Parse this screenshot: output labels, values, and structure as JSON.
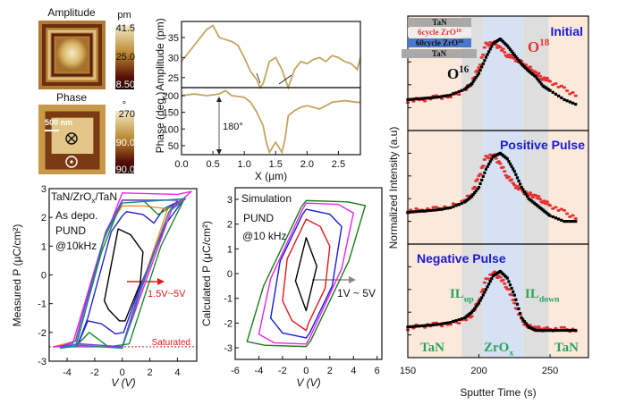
{
  "afm": {
    "amplitude_title": "Amplitude",
    "amplitude_unit": "pm",
    "amplitude_scale": [
      "41.5",
      "25.0",
      "8.50"
    ],
    "phase_title": "Phase",
    "phase_unit": "°",
    "phase_scale": [
      "270",
      "90.0",
      "-90.0"
    ],
    "scale_bar": "500 nm",
    "colors": {
      "light": "#f3e2a8",
      "mid": "#b8862e",
      "dark": "#4a0f08"
    }
  },
  "chart_data": [
    {
      "type": "line",
      "ylabel": "Amplitude (pm)",
      "xlim": [
        0,
        2.85
      ],
      "ylim": [
        22.5,
        39
      ],
      "yticks": [
        "35",
        "30",
        "25"
      ],
      "color": "#c4a55f",
      "x": [
        0,
        0.1,
        0.2,
        0.3,
        0.4,
        0.5,
        0.6,
        0.7,
        0.8,
        0.9,
        1.0,
        1.1,
        1.2,
        1.25,
        1.3,
        1.4,
        1.5,
        1.6,
        1.7,
        1.8,
        1.9,
        2.0,
        2.1,
        2.2,
        2.3,
        2.4,
        2.5,
        2.6,
        2.7,
        2.8,
        2.85
      ],
      "y": [
        29,
        31,
        33,
        35,
        37,
        38,
        35,
        34.5,
        34,
        33,
        30,
        26.5,
        24.5,
        22.5,
        23.5,
        29,
        30,
        27,
        22.5,
        27,
        29,
        28.5,
        29.5,
        30,
        29,
        30.5,
        30,
        29,
        28.5,
        27,
        30
      ]
    },
    {
      "type": "line",
      "ylabel": "Phase (deg.)",
      "xlabel": "X (μm)",
      "xlim": [
        0,
        2.85
      ],
      "ylim": [
        23,
        224
      ],
      "xticks": [
        "0.0",
        "0.5",
        "1.0",
        "1.5",
        "2.0",
        "2.5"
      ],
      "yticks": [
        "200",
        "150",
        "100",
        "50"
      ],
      "annotation": "180°",
      "color": "#c4a55f",
      "x": [
        0,
        0.2,
        0.4,
        0.6,
        0.7,
        0.8,
        1.0,
        1.1,
        1.2,
        1.3,
        1.35,
        1.4,
        1.5,
        1.6,
        1.65,
        1.7,
        1.8,
        1.9,
        2.0,
        2.2,
        2.4,
        2.6,
        2.8,
        2.85
      ],
      "y": [
        200,
        205,
        200,
        205,
        215,
        200,
        195,
        180,
        150,
        110,
        60,
        30,
        60,
        30,
        70,
        140,
        155,
        165,
        170,
        160,
        180,
        185,
        180,
        180
      ]
    },
    {
      "type": "line",
      "ylabel": "Measured P (μC/cm²)",
      "xlabel": "V (V)",
      "xlim": [
        -5.3,
        5.4
      ],
      "ylim": [
        -3,
        3
      ],
      "xticks": [
        "-4",
        "-2",
        "0",
        "2",
        "4"
      ],
      "yticks": [
        "3",
        "2",
        "1",
        "0",
        "-1",
        "-2",
        "-3"
      ],
      "labels": {
        "stack_a": "TaN/ZrO",
        "stack_sub": "x",
        "stack_b": "/TaN",
        "cond": "As depo.",
        "mode": "PUND",
        "freq": "@10kHz",
        "range": "1.5V~5V",
        "saturated": "Saturated"
      },
      "saturation_P": -2.5,
      "loops": [
        {
          "color": "#000000",
          "points": [
            [
              -1.3,
              -0.9
            ],
            [
              -0.3,
              1.6
            ],
            [
              0.6,
              1.4
            ],
            [
              1.5,
              0.8
            ],
            [
              1.3,
              -0.3
            ],
            [
              0.2,
              -1.6
            ],
            [
              -0.2,
              -1.6
            ],
            [
              -1.0,
              -1.2
            ]
          ]
        },
        {
          "color": "#2222cc",
          "points": [
            [
              -3.2,
              -2.4
            ],
            [
              -2.5,
              -1.5
            ],
            [
              -0.8,
              1.5
            ],
            [
              0,
              2.05
            ],
            [
              0.3,
              2.2
            ],
            [
              1.5,
              2.1
            ],
            [
              2.3,
              1.8
            ],
            [
              3,
              2.3
            ],
            [
              4.5,
              2.65
            ],
            [
              3.2,
              1.8
            ],
            [
              1.2,
              -0.5
            ],
            [
              0.1,
              -2.0
            ],
            [
              -0.5,
              -2.05
            ],
            [
              -1.5,
              -1.7
            ],
            [
              -2.5,
              -1.6
            ],
            [
              -3.2,
              -2.4
            ]
          ]
        },
        {
          "color": "#ff8c1a",
          "points": [
            [
              -5,
              -2.5
            ],
            [
              -3.4,
              -2.3
            ],
            [
              -1.2,
              1.5
            ],
            [
              0,
              2.4
            ],
            [
              1.5,
              2.4
            ],
            [
              3.3,
              2.3
            ],
            [
              1.3,
              -0.5
            ],
            [
              0,
              -2.5
            ],
            [
              -3,
              -2.4
            ]
          ]
        },
        {
          "color": "#1a8a2a",
          "points": [
            [
              -3.4,
              -2.5
            ],
            [
              -1.5,
              0.8
            ],
            [
              0,
              2.6
            ],
            [
              1.5,
              2.6
            ],
            [
              2.6,
              2.1
            ],
            [
              4.5,
              2.65
            ],
            [
              2.8,
              1.0
            ],
            [
              0.5,
              -2.4
            ],
            [
              -1,
              -2.5
            ],
            [
              -2.4,
              -2.0
            ],
            [
              -3,
              -2.3
            ]
          ]
        },
        {
          "color": "#ee22ee",
          "points": [
            [
              -5,
              -2.5
            ],
            [
              -3.6,
              -2.4
            ],
            [
              -1.5,
              1
            ],
            [
              0,
              2.85
            ],
            [
              4,
              2.8
            ],
            [
              5,
              2.9
            ],
            [
              3.6,
              2.3
            ],
            [
              1.5,
              -0.5
            ],
            [
              0,
              -2.5
            ],
            [
              -3,
              -2.5
            ]
          ]
        },
        {
          "color": "#7a3adf",
          "points": [
            [
              -4.5,
              -2.5
            ],
            [
              -3.4,
              -2.3
            ],
            [
              -1.2,
              1.5
            ],
            [
              0,
              2.6
            ],
            [
              4,
              2.6
            ],
            [
              3.4,
              2.2
            ],
            [
              1.2,
              -0.6
            ],
            [
              0,
              -2.5
            ],
            [
              -3,
              -2.4
            ]
          ]
        },
        {
          "color": "#178a8a",
          "points": [
            [
              -4.5,
              -2.55
            ],
            [
              -3.3,
              -2.4
            ],
            [
              -1.3,
              1.3
            ],
            [
              0,
              2.5
            ],
            [
              4.6,
              2.65
            ],
            [
              3.4,
              2.2
            ],
            [
              1.3,
              -0.6
            ],
            [
              0,
              -2.55
            ],
            [
              -3,
              -2.45
            ]
          ]
        }
      ]
    },
    {
      "type": "line",
      "ylabel": "Calculated P (μC/cm²)",
      "xlabel": "V (V)",
      "xlim": [
        -6,
        6.4
      ],
      "ylim": [
        -3.47,
        3.47
      ],
      "xticks": [
        "-6",
        "-4",
        "-2",
        "0",
        "2",
        "4",
        "6"
      ],
      "yticks": [
        "3",
        "2",
        "1",
        "0",
        "-1",
        "-2",
        "-3"
      ],
      "labels": {
        "sim": "Simulation",
        "mode": "PUND",
        "freq": "@10 kHz",
        "range": "1V ~ 5V"
      },
      "loops": [
        {
          "color": "#000000",
          "points": [
            [
              -0.9,
              -0.3
            ],
            [
              0,
              1.45
            ],
            [
              0.9,
              0.3
            ],
            [
              0,
              -1.5
            ]
          ]
        },
        {
          "color": "#e01a1a",
          "points": [
            [
              -2,
              -1.1
            ],
            [
              -1.6,
              0.6
            ],
            [
              -0.2,
              2.0
            ],
            [
              0,
              2.2
            ],
            [
              1.2,
              1.9
            ],
            [
              2,
              1.1
            ],
            [
              1.6,
              -0.6
            ],
            [
              0.2,
              -2.0
            ],
            [
              0,
              -2.3
            ],
            [
              -1.2,
              -1.9
            ]
          ]
        },
        {
          "color": "#1a1ae0",
          "points": [
            [
              -3,
              -1.8
            ],
            [
              -2.2,
              0.5
            ],
            [
              -0.3,
              2.4
            ],
            [
              0,
              2.6
            ],
            [
              2,
              2.4
            ],
            [
              3,
              1.9
            ],
            [
              2.2,
              -0.5
            ],
            [
              0.3,
              -2.4
            ],
            [
              0,
              -2.6
            ],
            [
              -2,
              -2.4
            ]
          ]
        },
        {
          "color": "#ee22ee",
          "points": [
            [
              -4,
              -2.45
            ],
            [
              -3.0,
              -0.2
            ],
            [
              -0.3,
              2.6
            ],
            [
              0,
              2.85
            ],
            [
              2.7,
              2.8
            ],
            [
              4,
              2.45
            ],
            [
              3,
              0.2
            ],
            [
              0.3,
              -2.6
            ],
            [
              0,
              -2.85
            ],
            [
              -2.7,
              -2.8
            ]
          ]
        },
        {
          "color": "#1a7a1a",
          "points": [
            [
              -5,
              -2.75
            ],
            [
              -3.6,
              -0.5
            ],
            [
              -0.4,
              2.7
            ],
            [
              0,
              2.95
            ],
            [
              3.5,
              2.9
            ],
            [
              5,
              2.75
            ],
            [
              3.6,
              0.5
            ],
            [
              0.4,
              -2.7
            ],
            [
              0,
              -2.95
            ],
            [
              -3.5,
              -2.9
            ]
          ]
        }
      ]
    },
    {
      "type": "scatter",
      "ylabel": "Normalized Intensity (a.u)",
      "xlabel": "Sputter Time (s)",
      "xlim": [
        150,
        277
      ],
      "xticks": [
        "150",
        "200",
        "250"
      ],
      "regions": [
        {
          "from": 150,
          "to": 188,
          "color": "#fbe9dc"
        },
        {
          "from": 188,
          "to": 203,
          "color": "#dedede"
        },
        {
          "from": 203,
          "to": 231,
          "color": "#d6e2f3"
        },
        {
          "from": 231,
          "to": 249,
          "color": "#dedede"
        },
        {
          "from": 249,
          "to": 277,
          "color": "#fbe9dc"
        }
      ],
      "series_colors": {
        "O16": "#000000",
        "O18": "#e8312f"
      },
      "x": [
        150,
        160,
        170,
        180,
        190,
        195,
        200,
        205,
        210,
        215,
        220,
        225,
        230,
        235,
        240,
        245,
        250,
        260,
        270
      ],
      "panels": [
        {
          "title": "Initial",
          "O16": [
            0.27,
            0.28,
            0.29,
            0.31,
            0.36,
            0.41,
            0.5,
            0.64,
            0.76,
            0.8,
            0.74,
            0.66,
            0.58,
            0.52,
            0.47,
            0.39,
            0.35,
            0.27,
            0.22
          ],
          "O18": [
            0.26,
            0.27,
            0.29,
            0.3,
            0.35,
            0.42,
            0.55,
            0.75,
            0.77,
            0.72,
            0.66,
            0.63,
            0.59,
            0.55,
            0.5,
            0.46,
            0.43,
            0.36,
            0.3
          ]
        },
        {
          "title": "Positive Pulse",
          "O16": [
            0.28,
            0.29,
            0.3,
            0.32,
            0.37,
            0.42,
            0.5,
            0.66,
            0.77,
            0.8,
            0.75,
            0.64,
            0.5,
            0.4,
            0.35,
            0.3,
            0.25,
            0.2,
            0.2
          ],
          "O18": [
            0.29,
            0.3,
            0.31,
            0.33,
            0.38,
            0.45,
            0.6,
            0.76,
            0.79,
            0.7,
            0.6,
            0.52,
            0.47,
            0.44,
            0.42,
            0.38,
            0.34,
            0.28,
            0.22
          ]
        },
        {
          "title": "Negative Pulse",
          "O16": [
            0.27,
            0.28,
            0.29,
            0.31,
            0.35,
            0.4,
            0.48,
            0.6,
            0.72,
            0.76,
            0.7,
            0.55,
            0.35,
            0.27,
            0.24,
            0.24,
            0.24,
            0.24,
            0.24
          ],
          "O18": [
            0.26,
            0.28,
            0.29,
            0.3,
            0.33,
            0.38,
            0.5,
            0.68,
            0.75,
            0.7,
            0.62,
            0.48,
            0.33,
            0.27,
            0.26,
            0.25,
            0.25,
            0.25,
            0.24
          ]
        }
      ],
      "stack_legend": [
        {
          "text": "TaN",
          "bg": "#a9a9a9",
          "color": "#111111"
        },
        {
          "text": "6cycle ZrO",
          "sup": "18",
          "bg": "#eeeeee",
          "color": "#e8312f"
        },
        {
          "text": "60cycle ZrO",
          "sup": "16",
          "bg": "#4a78c8",
          "color": "#111111"
        },
        {
          "text": "TaN",
          "bg": "#a9a9a9",
          "color": "#111111"
        }
      ],
      "labels": {
        "O18": "O",
        "O18_sup": "18",
        "O16": "O",
        "O16_sup": "16",
        "ILup": "IL",
        "ILup_sub": "up",
        "ILdown": "IL",
        "ILdown_sub": "down",
        "TaN_left": "TaN",
        "ZrOx": "ZrO",
        "ZrOx_sub": "x",
        "TaN_right": "TaN"
      },
      "accent": {
        "title": "#1a1ad0",
        "layer": "#2aa35a"
      }
    }
  ]
}
